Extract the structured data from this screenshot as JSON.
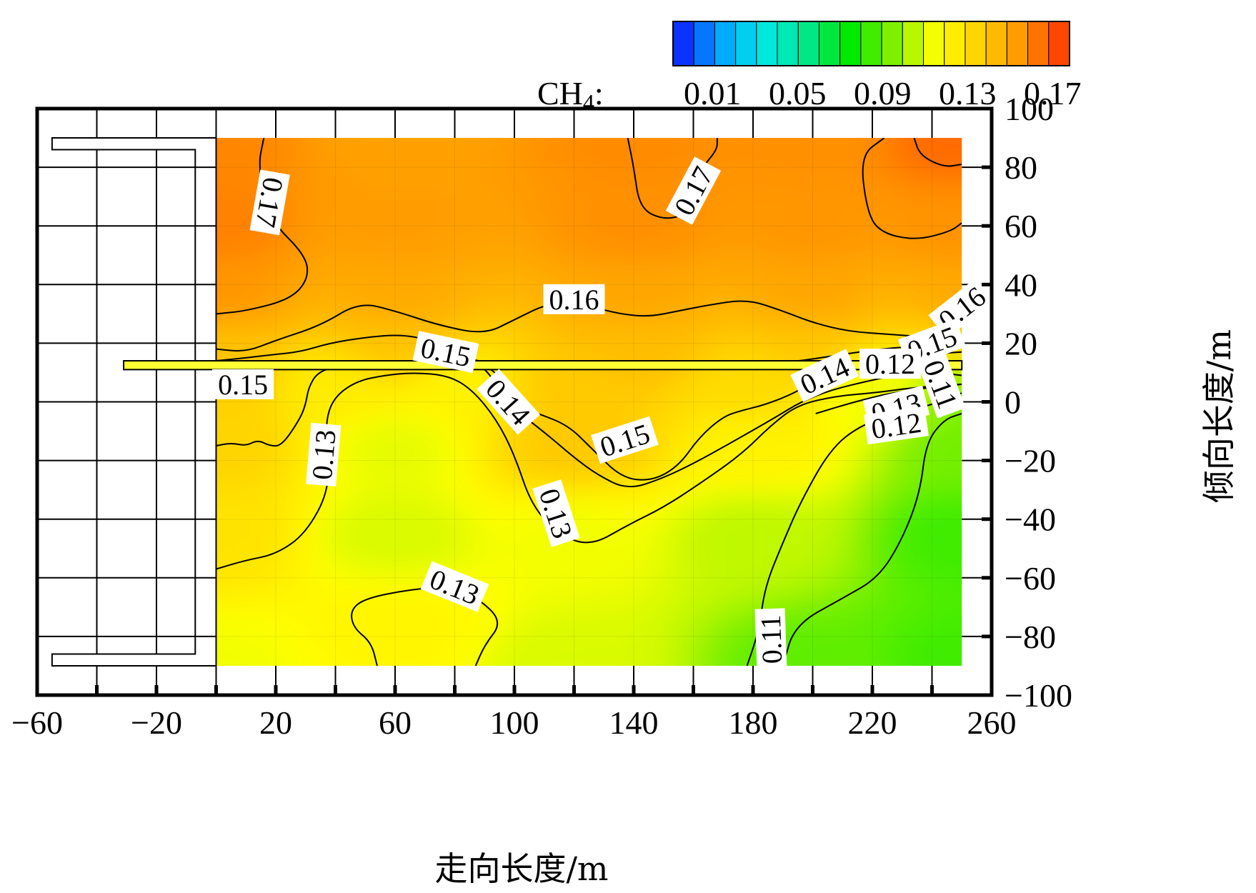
{
  "chart_data": {
    "type": "heatmap",
    "title": "",
    "xlabel": "走向长度/m",
    "ylabel": "倾向长度/m",
    "xlim": [
      -60,
      260
    ],
    "ylim": [
      -100,
      100
    ],
    "xticks": [
      -60,
      -20,
      20,
      60,
      100,
      140,
      180,
      220,
      260
    ],
    "xtick_labels": [
      "−60",
      "−20",
      "20",
      "60",
      "100",
      "140",
      "180",
      "220",
      "260"
    ],
    "yticks": [
      100,
      80,
      60,
      40,
      20,
      0,
      -20,
      -40,
      -60,
      -80,
      -100
    ],
    "ytick_labels": [
      "100",
      "80",
      "60",
      "40",
      "20",
      "0",
      "−20",
      "−40",
      "−60",
      "−80",
      "−100"
    ],
    "colorbar": {
      "label_main": "CH",
      "label_sub": "4",
      "label_suffix": ":",
      "ticks": [
        "0.01",
        "0.05",
        "0.09",
        "0.13",
        "0.17"
      ],
      "range": [
        0.01,
        0.19
      ],
      "colors": [
        "#1010ff",
        "#00a0ff",
        "#00e8e8",
        "#00e890",
        "#00e800",
        "#80f000",
        "#ffff00",
        "#ffd000",
        "#ff9000",
        "#ff3000"
      ]
    },
    "region": {
      "x": [
        0,
        250
      ],
      "y": [
        -90,
        90
      ]
    },
    "field_samples": [
      {
        "x": 0,
        "y": 90,
        "v": 0.172
      },
      {
        "x": 60,
        "y": 90,
        "v": 0.165
      },
      {
        "x": 140,
        "y": 90,
        "v": 0.171
      },
      {
        "x": 200,
        "y": 90,
        "v": 0.17
      },
      {
        "x": 250,
        "y": 90,
        "v": 0.178
      },
      {
        "x": 0,
        "y": 60,
        "v": 0.173
      },
      {
        "x": 60,
        "y": 60,
        "v": 0.166
      },
      {
        "x": 140,
        "y": 60,
        "v": 0.17
      },
      {
        "x": 200,
        "y": 60,
        "v": 0.168
      },
      {
        "x": 250,
        "y": 60,
        "v": 0.169
      },
      {
        "x": 0,
        "y": 35,
        "v": 0.168
      },
      {
        "x": 60,
        "y": 35,
        "v": 0.162
      },
      {
        "x": 140,
        "y": 35,
        "v": 0.163
      },
      {
        "x": 200,
        "y": 35,
        "v": 0.163
      },
      {
        "x": 250,
        "y": 35,
        "v": 0.162
      },
      {
        "x": 0,
        "y": 20,
        "v": 0.155
      },
      {
        "x": 60,
        "y": 20,
        "v": 0.154
      },
      {
        "x": 140,
        "y": 20,
        "v": 0.156
      },
      {
        "x": 200,
        "y": 20,
        "v": 0.153
      },
      {
        "x": 250,
        "y": 20,
        "v": 0.148
      },
      {
        "x": 0,
        "y": 5,
        "v": 0.15
      },
      {
        "x": 40,
        "y": 5,
        "v": 0.138
      },
      {
        "x": 80,
        "y": 5,
        "v": 0.135
      },
      {
        "x": 120,
        "y": 5,
        "v": 0.152
      },
      {
        "x": 180,
        "y": 5,
        "v": 0.145
      },
      {
        "x": 220,
        "y": 5,
        "v": 0.128
      },
      {
        "x": 250,
        "y": 5,
        "v": 0.11
      },
      {
        "x": 0,
        "y": -15,
        "v": 0.148
      },
      {
        "x": 60,
        "y": -15,
        "v": 0.126
      },
      {
        "x": 120,
        "y": -15,
        "v": 0.152
      },
      {
        "x": 180,
        "y": -15,
        "v": 0.135
      },
      {
        "x": 250,
        "y": -15,
        "v": 0.108
      },
      {
        "x": 0,
        "y": -45,
        "v": 0.142
      },
      {
        "x": 60,
        "y": -45,
        "v": 0.124
      },
      {
        "x": 120,
        "y": -45,
        "v": 0.128
      },
      {
        "x": 180,
        "y": -45,
        "v": 0.12
      },
      {
        "x": 250,
        "y": -45,
        "v": 0.1
      },
      {
        "x": 0,
        "y": -90,
        "v": 0.128
      },
      {
        "x": 60,
        "y": -75,
        "v": 0.134
      },
      {
        "x": 120,
        "y": -90,
        "v": 0.124
      },
      {
        "x": 200,
        "y": -90,
        "v": 0.105
      },
      {
        "x": 250,
        "y": -90,
        "v": 0.1
      }
    ],
    "contours": [
      {
        "level": "0.17",
        "points": [
          [
            16,
            90
          ],
          [
            14,
            80
          ],
          [
            18,
            62
          ],
          [
            30,
            50
          ],
          [
            31,
            42
          ],
          [
            25,
            35
          ],
          [
            10,
            31
          ],
          [
            0,
            30
          ]
        ]
      },
      {
        "level": "0.17",
        "points": [
          [
            138,
            90
          ],
          [
            140,
            80
          ],
          [
            142,
            66
          ],
          [
            150,
            62
          ],
          [
            158,
            64
          ],
          [
            160,
            72
          ],
          [
            163,
            80
          ],
          [
            168,
            86
          ],
          [
            168,
            90
          ]
        ]
      },
      {
        "level": "0.17",
        "points": [
          [
            224,
            90
          ],
          [
            216,
            84
          ],
          [
            218,
            66
          ],
          [
            222,
            58
          ],
          [
            234,
            55
          ],
          [
            246,
            58
          ],
          [
            250,
            61
          ]
        ]
      },
      {
        "level": "0.17",
        "points": [
          [
            234,
            90
          ],
          [
            236,
            84
          ],
          [
            244,
            80
          ],
          [
            250,
            81
          ]
        ]
      },
      {
        "level": "0.16",
        "points": [
          [
            0,
            18
          ],
          [
            10,
            17
          ],
          [
            20,
            21
          ],
          [
            35,
            26
          ],
          [
            48,
            34
          ],
          [
            60,
            31
          ],
          [
            75,
            26
          ],
          [
            90,
            23
          ],
          [
            100,
            28
          ],
          [
            112,
            34
          ],
          [
            124,
            33
          ],
          [
            135,
            30
          ],
          [
            145,
            29
          ],
          [
            155,
            31
          ],
          [
            165,
            33
          ],
          [
            178,
            35
          ],
          [
            190,
            31
          ],
          [
            200,
            27
          ],
          [
            212,
            24
          ],
          [
            226,
            23
          ],
          [
            240,
            22
          ],
          [
            250,
            22
          ]
        ]
      },
      {
        "level": "0.15",
        "points": [
          [
            0,
            14
          ],
          [
            10,
            15
          ],
          [
            18,
            16
          ],
          [
            28,
            17
          ],
          [
            38,
            20
          ],
          [
            50,
            22
          ],
          [
            62,
            23
          ],
          [
            72,
            21
          ],
          [
            80,
            18
          ],
          [
            86,
            14
          ],
          [
            100,
            12
          ],
          [
            120,
            12
          ],
          [
            160,
            12
          ],
          [
            190,
            13
          ],
          [
            215,
            17
          ],
          [
            232,
            19
          ],
          [
            250,
            19
          ]
        ]
      },
      {
        "level": "0.15",
        "points": [
          [
            0,
            -15
          ],
          [
            5,
            -14
          ],
          [
            10,
            -15
          ],
          [
            14,
            -13
          ],
          [
            18,
            -15
          ],
          [
            22,
            -15
          ],
          [
            28,
            -6
          ],
          [
            30,
            -1
          ],
          [
            31,
            5
          ],
          [
            34,
            10
          ],
          [
            40,
            12
          ],
          [
            60,
            12
          ],
          [
            90,
            12
          ],
          [
            94,
            10
          ],
          [
            96,
            4
          ],
          [
            100,
            -1
          ],
          [
            108,
            -4
          ],
          [
            118,
            -8
          ],
          [
            126,
            -16
          ],
          [
            136,
            -26
          ],
          [
            146,
            -27
          ],
          [
            155,
            -22
          ],
          [
            162,
            -12
          ],
          [
            170,
            -5
          ],
          [
            176,
            -3
          ],
          [
            184,
            -1
          ],
          [
            194,
            3
          ],
          [
            200,
            7
          ],
          [
            210,
            12
          ],
          [
            222,
            14
          ],
          [
            235,
            16
          ],
          [
            250,
            17
          ]
        ]
      },
      {
        "level": "0.14",
        "points": [
          [
            89,
            12
          ],
          [
            92,
            9
          ],
          [
            96,
            2
          ],
          [
            102,
            -4
          ],
          [
            112,
            -12
          ],
          [
            120,
            -19
          ],
          [
            128,
            -25
          ],
          [
            138,
            -30
          ],
          [
            150,
            -26
          ],
          [
            162,
            -20
          ],
          [
            176,
            -12
          ],
          [
            188,
            -5
          ],
          [
            196,
            0
          ],
          [
            206,
            4
          ],
          [
            218,
            7
          ],
          [
            232,
            10
          ],
          [
            244,
            13
          ],
          [
            250,
            14
          ]
        ]
      },
      {
        "level": "0.13",
        "points": [
          [
            0,
            -57
          ],
          [
            10,
            -54
          ],
          [
            20,
            -52
          ],
          [
            30,
            -45
          ],
          [
            38,
            -30
          ],
          [
            37,
            -15
          ],
          [
            37,
            -5
          ],
          [
            40,
            2
          ],
          [
            47,
            7
          ],
          [
            56,
            9
          ],
          [
            66,
            10
          ],
          [
            78,
            9
          ],
          [
            86,
            4
          ],
          [
            94,
            -6
          ],
          [
            100,
            -18
          ],
          [
            106,
            -36
          ],
          [
            116,
            -46
          ],
          [
            126,
            -49
          ],
          [
            138,
            -42
          ],
          [
            150,
            -36
          ],
          [
            162,
            -28
          ],
          [
            176,
            -18
          ],
          [
            186,
            -8
          ],
          [
            195,
            -1
          ],
          [
            208,
            2
          ],
          [
            220,
            3
          ],
          [
            235,
            5
          ],
          [
            250,
            6
          ]
        ]
      },
      {
        "level": "0.13",
        "points": [
          [
            54,
            -90
          ],
          [
            52,
            -82
          ],
          [
            46,
            -77
          ],
          [
            45,
            -71
          ],
          [
            50,
            -67
          ],
          [
            65,
            -64
          ],
          [
            78,
            -63
          ],
          [
            88,
            -67
          ],
          [
            96,
            -75
          ],
          [
            90,
            -83
          ],
          [
            87,
            -90
          ]
        ]
      },
      {
        "level": "0.12",
        "points": [
          [
            178,
            -90
          ],
          [
            182,
            -78
          ],
          [
            184,
            -63
          ],
          [
            190,
            -48
          ],
          [
            196,
            -34
          ],
          [
            206,
            -16
          ],
          [
            216,
            -8
          ],
          [
            228,
            -4
          ],
          [
            240,
            -1
          ],
          [
            250,
            3
          ]
        ]
      },
      {
        "level": "0.12",
        "points": [
          [
            201,
            -4
          ],
          [
            214,
            0
          ],
          [
            226,
            3
          ],
          [
            240,
            5
          ],
          [
            250,
            6
          ]
        ]
      },
      {
        "level": "0.11",
        "points": [
          [
            190,
            -90
          ],
          [
            194,
            -76
          ],
          [
            210,
            -67
          ],
          [
            222,
            -60
          ],
          [
            230,
            -47
          ],
          [
            236,
            -31
          ],
          [
            238,
            -14
          ],
          [
            244,
            -6
          ],
          [
            250,
            -4
          ]
        ]
      },
      {
        "level": "0.11",
        "points": [
          [
            236,
            12
          ],
          [
            242,
            10
          ],
          [
            250,
            9
          ]
        ]
      }
    ],
    "contour_labels": [
      {
        "text": "0.17",
        "x": 18,
        "y": 68,
        "angle": 100
      },
      {
        "text": "0.17",
        "x": 160,
        "y": 72,
        "angle": -62
      },
      {
        "text": "0.16",
        "x": 120,
        "y": 35,
        "angle": 0
      },
      {
        "text": "0.16",
        "x": 250,
        "y": 32,
        "angle": -38
      },
      {
        "text": "0.15",
        "x": 77,
        "y": 17,
        "angle": 12
      },
      {
        "text": "0.15",
        "x": 9,
        "y": 6,
        "angle": 0
      },
      {
        "text": "0.15",
        "x": 137,
        "y": -13,
        "angle": -18
      },
      {
        "text": "0.15",
        "x": 240,
        "y": 20,
        "angle": -20
      },
      {
        "text": "0.14",
        "x": 98,
        "y": 0,
        "angle": 48
      },
      {
        "text": "0.14",
        "x": 204,
        "y": 9,
        "angle": -25
      },
      {
        "text": "0.13",
        "x": 36,
        "y": -18,
        "angle": -85
      },
      {
        "text": "0.13",
        "x": 114,
        "y": -38,
        "angle": 72
      },
      {
        "text": "0.13",
        "x": 80,
        "y": -63,
        "angle": 22
      },
      {
        "text": "0.13",
        "x": 228,
        "y": -2,
        "angle": -14
      },
      {
        "text": "0.12",
        "x": 226,
        "y": 13,
        "angle": 0
      },
      {
        "text": "0.12",
        "x": 228,
        "y": -8,
        "angle": -8
      },
      {
        "text": "0.11",
        "x": 186,
        "y": -81,
        "angle": -92
      },
      {
        "text": "0.11",
        "x": 243,
        "y": 6,
        "angle": 70
      }
    ],
    "roadway": {
      "x": [
        -31,
        250
      ],
      "y": [
        11,
        14
      ]
    },
    "goaf_outline_points": [
      [
        -55,
        90
      ],
      [
        -55,
        86
      ],
      [
        -7,
        86
      ],
      [
        -7,
        -86
      ],
      [
        -55,
        -86
      ],
      [
        -55,
        -90
      ],
      [
        0,
        -90
      ],
      [
        0,
        90
      ],
      [
        -55,
        90
      ]
    ]
  }
}
